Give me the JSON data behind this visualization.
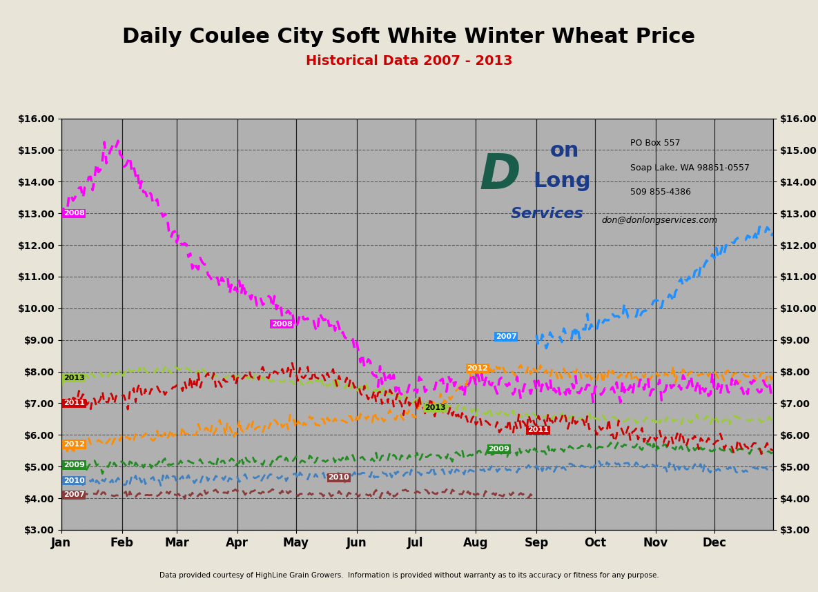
{
  "title": "Daily Coulee City Soft White Winter Wheat Price",
  "subtitle": "Historical Data 2007 - 2013",
  "footer": "Data provided courtesy of HighLine Grain Growers.  Information is provided without warranty as to its accuracy or fitness for any purpose.",
  "watermark_line1": "PO Box 557",
  "watermark_line2": "Soap Lake, WA 98851-0557",
  "watermark_line3": "509 855-4386",
  "watermark_line4": "don@donlongservices.com",
  "ylim": [
    3.0,
    16.0
  ],
  "yticks": [
    3.0,
    4.0,
    5.0,
    6.0,
    7.0,
    8.0,
    9.0,
    10.0,
    11.0,
    12.0,
    13.0,
    14.0,
    15.0,
    16.0
  ],
  "background_color": "#b0b0b0",
  "outer_background": "#e8e4d8",
  "title_fontsize": 22,
  "subtitle_color": "#cc0000",
  "logo_D_color": "#1a5c4a",
  "logo_text_color": "#1a3a8a",
  "month_labels": [
    "Jan",
    "Feb",
    "Mar",
    "Apr",
    "May",
    "Jun",
    "Jul",
    "Aug",
    "Sep",
    "Oct",
    "Nov",
    "Dec"
  ],
  "month_days": [
    1,
    32,
    60,
    91,
    121,
    152,
    182,
    213,
    244,
    274,
    305,
    335
  ]
}
